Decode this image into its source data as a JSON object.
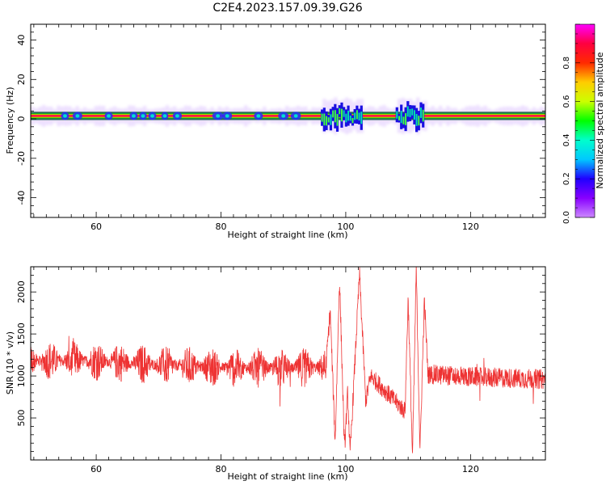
{
  "figure": {
    "title": "C2E4.2023.157.09.39.G26"
  },
  "chart_data": [
    {
      "type": "heatmap",
      "name": "spectrogram",
      "xlabel": "Height of straight line (km)",
      "ylabel": "Frequency (Hz)",
      "xlim": [
        49.5,
        132
      ],
      "ylim": [
        -50,
        48
      ],
      "xticks": [
        60,
        80,
        100,
        120
      ],
      "yticks": [
        -40,
        -20,
        0,
        20,
        40
      ],
      "band_center_hz": 1.5,
      "band_halfwidth_hz": 1.2,
      "disturbed_ranges_km": [
        [
          96,
          102.5
        ],
        [
          108,
          112.5
        ]
      ],
      "colormap": [
        "#ff00ff",
        "#ff0040",
        "#ff2a00",
        "#ffcc00",
        "#ccff00",
        "#00ff00",
        "#00ffcc",
        "#00c8ff",
        "#2000ff",
        "#8800ff",
        "#cc88ff"
      ]
    },
    {
      "type": "colorbar",
      "label": "Normalized spectral amplitude",
      "range": [
        0,
        1
      ],
      "ticks": [
        "0.0",
        "0.2",
        "0.4",
        "0.6",
        "0.8"
      ]
    },
    {
      "type": "line",
      "name": "snr",
      "xlabel": "Height of straight line (km)",
      "ylabel": "SNR (10 * v/v)",
      "xlim": [
        49.5,
        132
      ],
      "ylim": [
        0,
        2300
      ],
      "xticks": [
        60,
        80,
        100,
        120
      ],
      "yticks": [
        500,
        1000,
        1500,
        2000
      ],
      "color": "#ee3333",
      "baseline": [
        [
          49.5,
          1180
        ],
        [
          60,
          1180
        ],
        [
          70,
          1130
        ],
        [
          80,
          1100
        ],
        [
          90,
          1090
        ],
        [
          96,
          1100
        ],
        [
          113,
          1020
        ],
        [
          120,
          990
        ],
        [
          132,
          960
        ]
      ],
      "oscillation_peaks": [
        [
          97.5,
          1780
        ],
        [
          98.3,
          200
        ],
        [
          99.0,
          2160
        ],
        [
          99.8,
          120
        ],
        [
          100.3,
          800
        ],
        [
          100.7,
          60
        ],
        [
          102.2,
          2220
        ],
        [
          103.2,
          700
        ],
        [
          104.0,
          1000
        ],
        [
          109.5,
          580
        ],
        [
          110.0,
          1930
        ],
        [
          110.7,
          30
        ],
        [
          111.3,
          2280
        ],
        [
          111.9,
          100
        ],
        [
          112.6,
          1900
        ],
        [
          113.2,
          1000
        ]
      ],
      "noise_amplitude": 150
    }
  ]
}
